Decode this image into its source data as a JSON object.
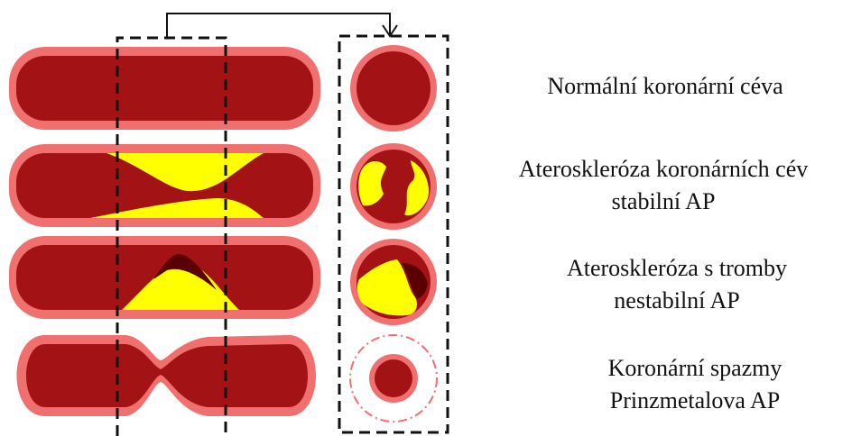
{
  "labels": [
    {
      "lines": [
        "Normální koronární céva"
      ]
    },
    {
      "lines": [
        "Ateroskleróza koronárních cév",
        "stabilní AP"
      ]
    },
    {
      "lines": [
        "Ateroskleróza s tromby",
        "nestabilní AP"
      ]
    },
    {
      "lines": [
        "Koronární spazmy",
        "Prinzmetalova AP"
      ]
    }
  ]
}
